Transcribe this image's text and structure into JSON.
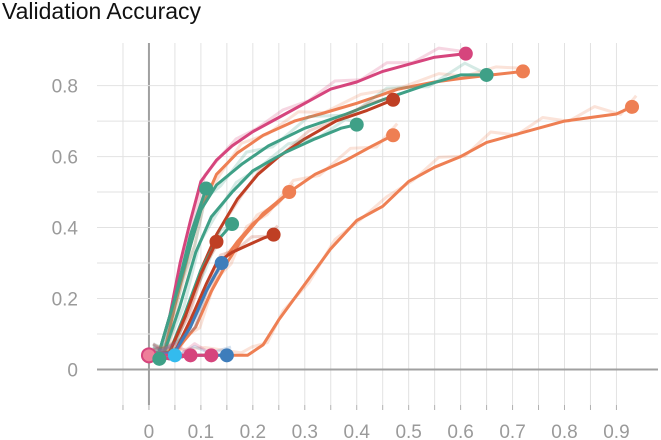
{
  "chart_data": {
    "type": "line",
    "title": "Validation Accuracy",
    "xlabel": "",
    "ylabel": "",
    "xlim": [
      -0.1,
      0.98
    ],
    "ylim": [
      -0.1,
      0.92
    ],
    "x_ticks": [
      "0",
      "0.1",
      "0.2",
      "0.3",
      "0.4",
      "0.5",
      "0.6",
      "0.7",
      "0.8",
      "0.9"
    ],
    "y_ticks": [
      "0",
      "0.2",
      "0.4",
      "0.6",
      "0.8"
    ],
    "grid": true,
    "legend": "none",
    "series": [
      {
        "color": "#d6457d",
        "x": [
          0,
          0.02,
          0.04,
          0.06,
          0.08,
          0.1,
          0.13,
          0.16,
          0.2,
          0.25,
          0.3,
          0.35,
          0.4,
          0.45,
          0.5,
          0.55,
          0.61
        ],
        "y": [
          0.04,
          0.05,
          0.15,
          0.3,
          0.42,
          0.53,
          0.59,
          0.63,
          0.67,
          0.71,
          0.75,
          0.79,
          0.81,
          0.84,
          0.86,
          0.88,
          0.89
        ]
      },
      {
        "color": "#ee7f53",
        "x": [
          0,
          0.03,
          0.05,
          0.08,
          0.1,
          0.13,
          0.17,
          0.22,
          0.28,
          0.33,
          0.4,
          0.48,
          0.55,
          0.6,
          0.66,
          0.72
        ],
        "y": [
          0.04,
          0.05,
          0.18,
          0.35,
          0.45,
          0.55,
          0.61,
          0.66,
          0.7,
          0.72,
          0.75,
          0.79,
          0.81,
          0.82,
          0.83,
          0.84
        ]
      },
      {
        "color": "#3fa087",
        "x": [
          0,
          0.02,
          0.05,
          0.08,
          0.1,
          0.13,
          0.18,
          0.23,
          0.3,
          0.38,
          0.45,
          0.53,
          0.6,
          0.65
        ],
        "y": [
          0.04,
          0.05,
          0.2,
          0.35,
          0.45,
          0.52,
          0.58,
          0.63,
          0.68,
          0.72,
          0.76,
          0.8,
          0.83,
          0.83
        ]
      },
      {
        "color": "#bf3f24",
        "x": [
          0,
          0.04,
          0.07,
          0.1,
          0.13,
          0.17,
          0.21,
          0.25,
          0.3,
          0.36,
          0.42,
          0.47
        ],
        "y": [
          0.04,
          0.05,
          0.15,
          0.28,
          0.38,
          0.48,
          0.55,
          0.6,
          0.65,
          0.7,
          0.73,
          0.76
        ]
      },
      {
        "color": "#3fa087",
        "x": [
          0,
          0.03,
          0.06,
          0.09,
          0.12,
          0.16,
          0.2,
          0.26,
          0.32,
          0.37,
          0.4
        ],
        "y": [
          0.04,
          0.05,
          0.18,
          0.33,
          0.43,
          0.5,
          0.56,
          0.61,
          0.65,
          0.68,
          0.69
        ]
      },
      {
        "color": "#ee7f53",
        "x": [
          0,
          0.05,
          0.09,
          0.12,
          0.15,
          0.18,
          0.22,
          0.27,
          0.32,
          0.38,
          0.43,
          0.47
        ],
        "y": [
          0.04,
          0.05,
          0.12,
          0.22,
          0.3,
          0.37,
          0.44,
          0.5,
          0.55,
          0.59,
          0.63,
          0.66
        ]
      },
      {
        "color": "#3fa087",
        "x": [
          0,
          0.02,
          0.05,
          0.08,
          0.11
        ],
        "y": [
          0.04,
          0.05,
          0.2,
          0.38,
          0.51
        ]
      },
      {
        "color": "#ee7f53",
        "x": [
          0,
          0.05,
          0.08,
          0.11,
          0.14,
          0.17,
          0.2,
          0.24,
          0.27
        ],
        "y": [
          0.04,
          0.05,
          0.12,
          0.22,
          0.3,
          0.36,
          0.41,
          0.46,
          0.5
        ]
      },
      {
        "color": "#3fa087",
        "x": [
          0,
          0.04,
          0.07,
          0.1,
          0.13,
          0.16
        ],
        "y": [
          0.04,
          0.05,
          0.16,
          0.28,
          0.36,
          0.41
        ]
      },
      {
        "color": "#bf3f24",
        "x": [
          0,
          0.05,
          0.08,
          0.11,
          0.13,
          0.16,
          0.19,
          0.22,
          0.24
        ],
        "y": [
          0.04,
          0.05,
          0.14,
          0.24,
          0.3,
          0.33,
          0.35,
          0.37,
          0.38
        ]
      },
      {
        "color": "#bf3f24",
        "x": [
          0,
          0.04,
          0.07,
          0.1,
          0.13
        ],
        "y": [
          0.04,
          0.05,
          0.15,
          0.27,
          0.36
        ]
      },
      {
        "color": "#3e7dbb",
        "x": [
          0,
          0.05,
          0.08,
          0.11,
          0.14
        ],
        "y": [
          0.04,
          0.05,
          0.12,
          0.22,
          0.3
        ]
      },
      {
        "color": "#ee7f53",
        "x": [
          0,
          0.1,
          0.17,
          0.19,
          0.22,
          0.25,
          0.3,
          0.35,
          0.4,
          0.45,
          0.5,
          0.55,
          0.6,
          0.65,
          0.7,
          0.75,
          0.8,
          0.85,
          0.9,
          0.93
        ],
        "y": [
          0.04,
          0.04,
          0.04,
          0.04,
          0.07,
          0.14,
          0.24,
          0.34,
          0.42,
          0.46,
          0.53,
          0.57,
          0.6,
          0.64,
          0.66,
          0.68,
          0.7,
          0.71,
          0.72,
          0.74
        ]
      },
      {
        "color": "#3e7dbb",
        "x": [
          0,
          0.04,
          0.08,
          0.11,
          0.15
        ],
        "y": [
          0.04,
          0.03,
          0.04,
          0.04,
          0.04
        ]
      },
      {
        "color": "#d6457d",
        "x": [
          0,
          0.04,
          0.08,
          0.12
        ],
        "y": [
          0.04,
          0.03,
          0.04,
          0.04
        ]
      },
      {
        "color": "#3fa087",
        "x": [
          0,
          0.01,
          0.02
        ],
        "y": [
          0.04,
          0.03,
          0.03
        ]
      },
      {
        "color": "#33bbee",
        "x": [
          0,
          0.03,
          0.05
        ],
        "y": [
          0.04,
          0.04,
          0.04
        ]
      },
      {
        "color": "#d6457d",
        "x": [
          0,
          0.04,
          0.08
        ],
        "y": [
          0.04,
          0.04,
          0.04
        ]
      }
    ]
  }
}
